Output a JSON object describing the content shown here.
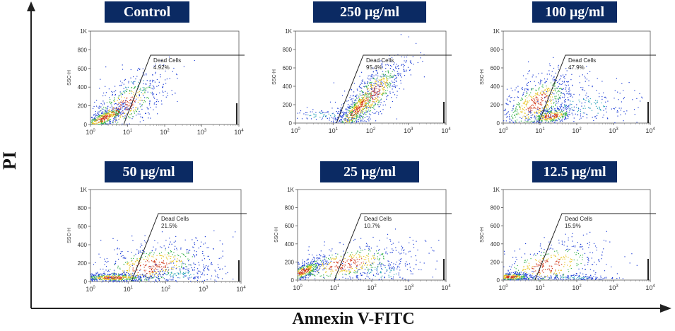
{
  "figure": {
    "y_axis_label": "PI",
    "x_axis_label": "Annexin V-FITC"
  },
  "chart_data": [
    {
      "type": "scatter",
      "title": "Control",
      "ylabel": "SSC-H",
      "xlim": [
        1,
        10000
      ],
      "ylim": [
        0,
        1000
      ],
      "x_scale": "log",
      "x_ticks": [
        "10^0",
        "10^1",
        "10^2",
        "10^3",
        "10^4"
      ],
      "y_ticks": [
        "0",
        "200",
        "400",
        "600",
        "800",
        "1K"
      ],
      "gate_label": "Dead Cells",
      "gate_value": "4.92%"
    },
    {
      "type": "scatter",
      "title": "250 μg/ml",
      "ylabel": "SSC-H",
      "xlim": [
        1,
        10000
      ],
      "ylim": [
        0,
        1000
      ],
      "x_scale": "log",
      "x_ticks": [
        "10^0",
        "10^1",
        "10^2",
        "10^3",
        "10^4"
      ],
      "y_ticks": [
        "0",
        "200",
        "400",
        "600",
        "800",
        "1K"
      ],
      "gate_label": "Dead Cells",
      "gate_value": "95.4%"
    },
    {
      "type": "scatter",
      "title": "100 μg/ml",
      "ylabel": "SSC-H",
      "xlim": [
        1,
        10000
      ],
      "ylim": [
        0,
        1000
      ],
      "x_scale": "log",
      "x_ticks": [
        "10^0",
        "10^1",
        "10^2",
        "10^3",
        "10^4"
      ],
      "y_ticks": [
        "0",
        "200",
        "400",
        "600",
        "800",
        "1K"
      ],
      "gate_label": "Dead Cells",
      "gate_value": "47.9%"
    },
    {
      "type": "scatter",
      "title": "50 μg/ml",
      "ylabel": "SSC-H",
      "xlim": [
        1,
        10000
      ],
      "ylim": [
        0,
        1000
      ],
      "x_scale": "log",
      "x_ticks": [
        "10^0",
        "10^1",
        "10^2",
        "10^3",
        "10^4"
      ],
      "y_ticks": [
        "0",
        "200",
        "400",
        "600",
        "800",
        "1K"
      ],
      "gate_label": "Dead Cells",
      "gate_value": "21.5%"
    },
    {
      "type": "scatter",
      "title": "25 μg/ml",
      "ylabel": "SSC-H",
      "xlim": [
        1,
        10000
      ],
      "ylim": [
        0,
        1000
      ],
      "x_scale": "log",
      "x_ticks": [
        "10^0",
        "10^1",
        "10^2",
        "10^3",
        "10^4"
      ],
      "y_ticks": [
        "0",
        "200",
        "400",
        "600",
        "800",
        "1K"
      ],
      "gate_label": "Dead Cells",
      "gate_value": "10.7%"
    },
    {
      "type": "scatter",
      "title": "12.5 μg/ml",
      "ylabel": "SSC-H",
      "xlim": [
        1,
        10000
      ],
      "ylim": [
        0,
        1000
      ],
      "x_scale": "log",
      "x_ticks": [
        "10^0",
        "10^1",
        "10^2",
        "10^3",
        "10^4"
      ],
      "y_ticks": [
        "0",
        "200",
        "400",
        "600",
        "800",
        "1K"
      ],
      "gate_label": "Dead Cells",
      "gate_value": "15.9%"
    }
  ]
}
